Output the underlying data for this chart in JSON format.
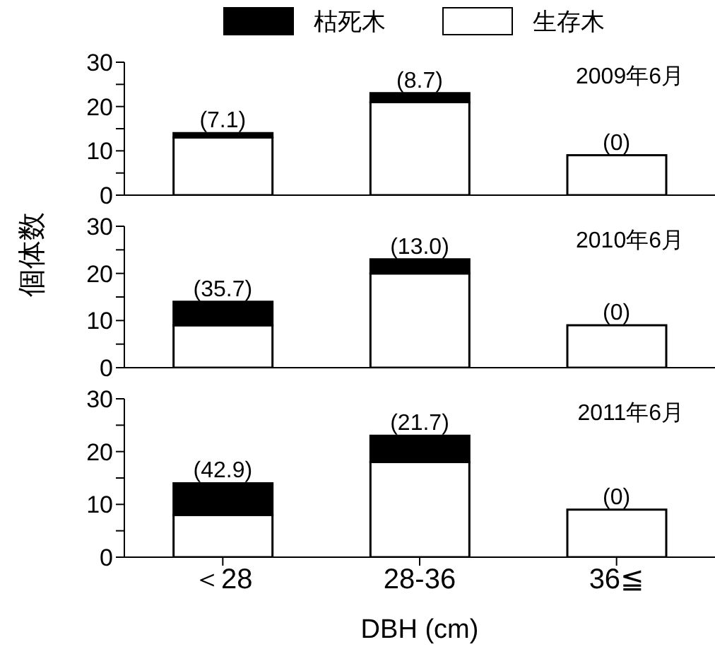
{
  "chart_data": [
    {
      "type": "bar",
      "stacked": true,
      "categories": [
        "＜28",
        "28-36",
        "36≦"
      ],
      "legend": "top",
      "tick_labels": "y",
      "series": [
        {
          "name": "生存木",
          "color": "#ffffff",
          "values": [
            13,
            21,
            9
          ]
        },
        {
          "name": "枯死木",
          "color": "#000000",
          "values": [
            1,
            2,
            0
          ]
        }
      ],
      "ylim": [
        0,
        30
      ],
      "yticks": [
        0,
        {
          "value": 5,
          "label": null
        },
        10,
        {
          "value": 15,
          "label": null
        },
        20,
        {
          "value": 25,
          "label": null
        },
        30
      ],
      "annotations": [
        "2009年6月",
        {
          "text": "(7.1)",
          "x": "＜28",
          "y": 14
        },
        {
          "text": "(8.7)",
          "x": "28-36",
          "y": 23
        },
        {
          "text": "(0)",
          "x": "36≦",
          "y": 9
        }
      ]
    },
    {
      "type": "bar",
      "stacked": true,
      "categories": [
        "＜28",
        "28-36",
        "36≦"
      ],
      "tick_labels": "y",
      "ylabel": "個体数",
      "series": [
        {
          "color": "#ffffff",
          "values": [
            9,
            20,
            9
          ]
        },
        {
          "color": "#000000",
          "values": [
            5,
            3,
            0
          ]
        }
      ],
      "ylim": [
        0,
        30
      ],
      "yticks": [
        0,
        {
          "value": 5,
          "label": null
        },
        10,
        {
          "value": 15,
          "label": null
        },
        20,
        {
          "value": 25,
          "label": null
        },
        30
      ],
      "annotations": [
        "2010年6月",
        {
          "text": "(35.7)",
          "x": "＜28",
          "y": 14
        },
        {
          "text": "(13.0)",
          "x": "28-36",
          "y": 23
        },
        {
          "text": "(0)",
          "x": "36≦",
          "y": 9
        }
      ]
    },
    {
      "type": "bar",
      "stacked": true,
      "categories": [
        "＜28",
        "28-36",
        "36≦"
      ],
      "xlabel": "DBH (cm)",
      "series": [
        {
          "color": "#ffffff",
          "values": [
            8,
            18,
            9
          ]
        },
        {
          "color": "#000000",
          "values": [
            6,
            5,
            0
          ]
        }
      ],
      "ylim": [
        0,
        30
      ],
      "yticks": [
        0,
        {
          "value": 5,
          "label": null
        },
        10,
        {
          "value": 15,
          "label": null
        },
        20,
        {
          "value": 25,
          "label": null
        },
        30
      ],
      "annotations": [
        "2011年6月",
        {
          "text": "(42.9)",
          "x": "＜28",
          "y": 14
        },
        {
          "text": "(21.7)",
          "x": "28-36",
          "y": 23
        },
        {
          "text": "(0)",
          "x": "36≦",
          "y": 9
        }
      ]
    }
  ]
}
